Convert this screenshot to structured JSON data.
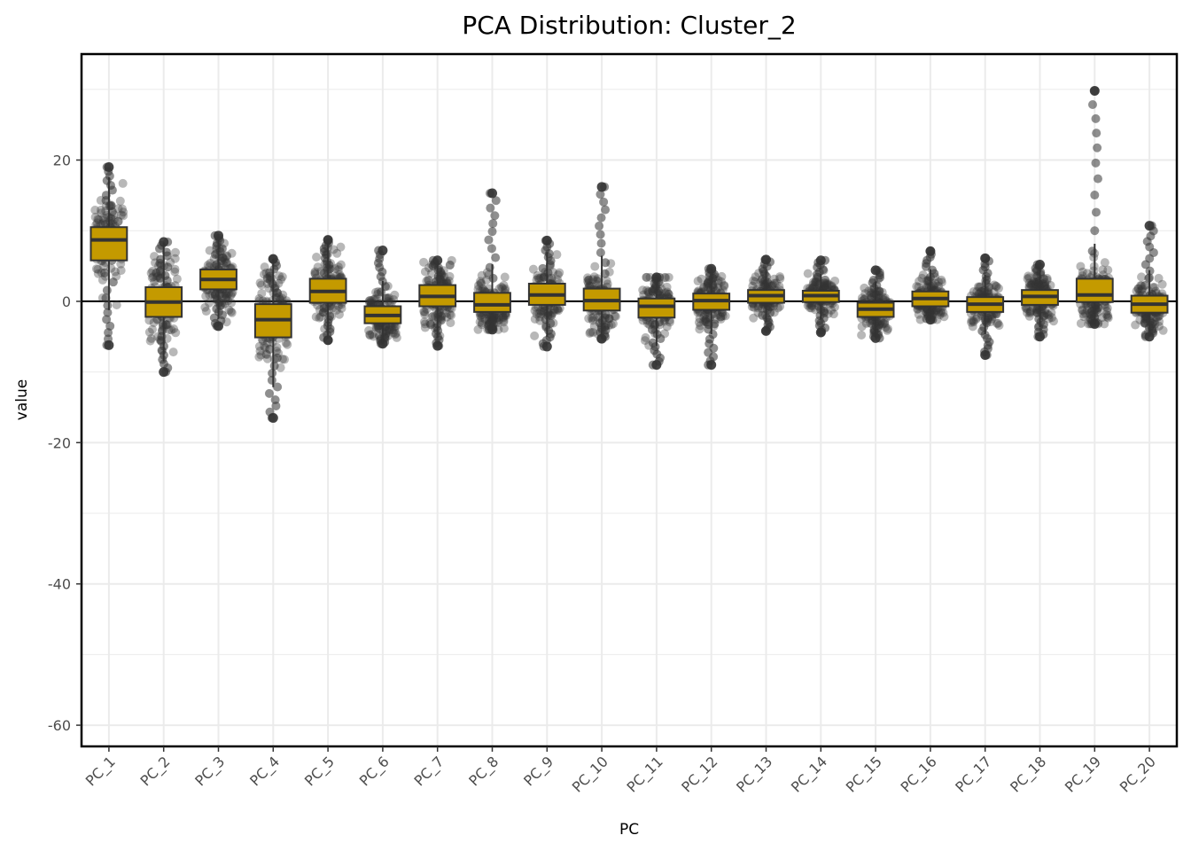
{
  "chart_data": {
    "type": "box",
    "title": "PCA Distribution: Cluster_2",
    "xlabel": "PC",
    "ylabel": "value",
    "categories": [
      "PC_1",
      "PC_2",
      "PC_3",
      "PC_4",
      "PC_5",
      "PC_6",
      "PC_7",
      "PC_8",
      "PC_9",
      "PC_10",
      "PC_11",
      "PC_12",
      "PC_13",
      "PC_14",
      "PC_15",
      "PC_16",
      "PC_17",
      "PC_18",
      "PC_19",
      "PC_20"
    ],
    "ylim": [
      -63,
      35
    ],
    "yticks": [
      20,
      0,
      -20,
      -40,
      -60
    ],
    "ytick_labels": [
      "20",
      "0",
      "-20",
      "-40",
      "-60"
    ],
    "reference_line_y": 0,
    "grid": true,
    "box_fill": "#c49a00",
    "box_stroke": "#333333",
    "point_color": "#333333",
    "boxes": [
      {
        "category": "PC_1",
        "q1": 5.8,
        "median": 8.7,
        "q3": 10.5,
        "points_min": -6.2,
        "points_max": 19.0
      },
      {
        "category": "PC_2",
        "q1": -2.2,
        "median": -0.1,
        "q3": 2.0,
        "points_min": -10.0,
        "points_max": 8.4
      },
      {
        "category": "PC_3",
        "q1": 1.7,
        "median": 3.1,
        "q3": 4.5,
        "points_min": -3.5,
        "points_max": 9.3
      },
      {
        "category": "PC_4",
        "q1": -5.1,
        "median": -2.6,
        "q3": -0.4,
        "points_min": -16.5,
        "points_max": 6.0
      },
      {
        "category": "PC_5",
        "q1": -0.2,
        "median": 1.4,
        "q3": 3.2,
        "points_min": -5.5,
        "points_max": 8.7
      },
      {
        "category": "PC_6",
        "q1": -3.1,
        "median": -2.0,
        "q3": -0.7,
        "points_min": -6.0,
        "points_max": 7.2
      },
      {
        "category": "PC_7",
        "q1": -0.7,
        "median": 0.7,
        "q3": 2.3,
        "points_min": -6.3,
        "points_max": 5.8
      },
      {
        "category": "PC_8",
        "q1": -1.5,
        "median": -0.5,
        "q3": 1.2,
        "points_min": -4.0,
        "points_max": 15.3
      },
      {
        "category": "PC_9",
        "q1": -0.5,
        "median": 0.9,
        "q3": 2.5,
        "points_min": -6.4,
        "points_max": 8.6
      },
      {
        "category": "PC_10",
        "q1": -1.3,
        "median": 0.1,
        "q3": 1.8,
        "points_min": -5.3,
        "points_max": 16.2
      },
      {
        "category": "PC_11",
        "q1": -2.3,
        "median": -0.7,
        "q3": 0.4,
        "points_min": -9.0,
        "points_max": 3.4
      },
      {
        "category": "PC_12",
        "q1": -1.2,
        "median": 0.1,
        "q3": 1.1,
        "points_min": -9.0,
        "points_max": 4.6
      },
      {
        "category": "PC_13",
        "q1": -0.2,
        "median": 0.8,
        "q3": 1.6,
        "points_min": -4.2,
        "points_max": 5.9
      },
      {
        "category": "PC_14",
        "q1": -0.1,
        "median": 0.8,
        "q3": 1.5,
        "points_min": -4.4,
        "points_max": 5.8
      },
      {
        "category": "PC_15",
        "q1": -2.2,
        "median": -1.1,
        "q3": -0.2,
        "points_min": -5.2,
        "points_max": 4.4
      },
      {
        "category": "PC_16",
        "q1": -0.7,
        "median": 0.4,
        "q3": 1.4,
        "points_min": -2.6,
        "points_max": 7.1
      },
      {
        "category": "PC_17",
        "q1": -1.5,
        "median": -0.4,
        "q3": 0.6,
        "points_min": -7.6,
        "points_max": 6.1
      },
      {
        "category": "PC_18",
        "q1": -0.5,
        "median": 0.7,
        "q3": 1.6,
        "points_min": -5.0,
        "points_max": 5.2
      },
      {
        "category": "PC_19",
        "q1": -0.1,
        "median": 0.9,
        "q3": 3.2,
        "points_min": -3.2,
        "points_max": 29.8
      },
      {
        "category": "PC_20",
        "q1": -1.6,
        "median": -0.4,
        "q3": 0.8,
        "points_min": -5.0,
        "points_max": 10.7
      }
    ]
  }
}
